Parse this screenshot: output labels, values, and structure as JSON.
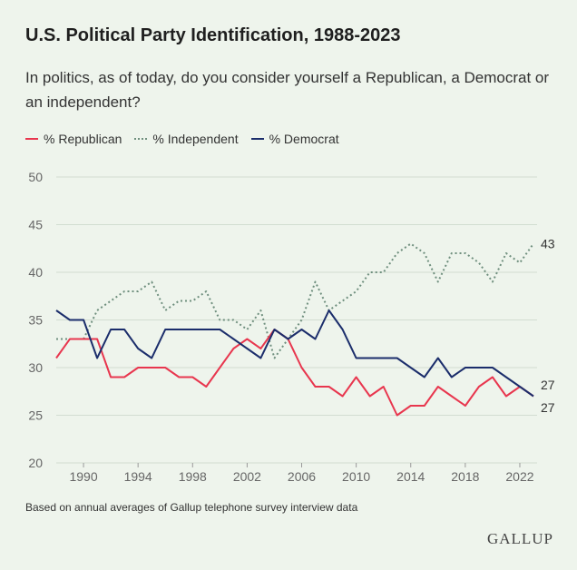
{
  "header": {
    "title": "U.S. Political Party Identification, 1988-2023",
    "subtitle": "In politics, as of today, do you consider yourself a Republican, a Democrat or an independent?"
  },
  "legend": {
    "republican": "% Republican",
    "independent": "% Independent",
    "democrat": "% Democrat"
  },
  "footer": {
    "note": "Based on annual averages of Gallup telephone survey interview data",
    "logo": "GALLUP"
  },
  "colors": {
    "background": "#eef4ec",
    "republican": "#e8364e",
    "independent": "#6f8f7e",
    "democrat": "#1b2d6b",
    "grid": "#d2ddd1"
  },
  "chart_data": {
    "type": "line",
    "title": "U.S. Political Party Identification, 1988-2023",
    "xlabel": "",
    "ylabel": "",
    "ylim": [
      20,
      50
    ],
    "yticks": [
      20,
      25,
      30,
      35,
      40,
      45,
      50
    ],
    "xlim": [
      1988,
      2023
    ],
    "xticks": [
      1990,
      1994,
      1998,
      2002,
      2006,
      2010,
      2014,
      2018,
      2022
    ],
    "x": [
      1988,
      1989,
      1990,
      1991,
      1992,
      1993,
      1994,
      1995,
      1996,
      1997,
      1998,
      1999,
      2000,
      2001,
      2002,
      2003,
      2004,
      2005,
      2006,
      2007,
      2008,
      2009,
      2010,
      2011,
      2012,
      2013,
      2014,
      2015,
      2016,
      2017,
      2018,
      2019,
      2020,
      2021,
      2022,
      2023
    ],
    "series": [
      {
        "name": "% Republican",
        "style": "solid",
        "values": [
          31,
          33,
          33,
          33,
          29,
          29,
          30,
          30,
          30,
          29,
          29,
          28,
          30,
          32,
          33,
          32,
          34,
          33,
          30,
          28,
          28,
          27,
          29,
          27,
          28,
          25,
          26,
          26,
          28,
          27,
          26,
          28,
          29,
          27,
          28,
          27
        ]
      },
      {
        "name": "% Independent",
        "style": "dotted",
        "values": [
          33,
          33,
          33,
          36,
          37,
          38,
          38,
          39,
          36,
          37,
          37,
          38,
          35,
          35,
          34,
          36,
          31,
          33,
          35,
          39,
          36,
          37,
          38,
          40,
          40,
          42,
          43,
          42,
          39,
          42,
          42,
          41,
          39,
          42,
          41,
          43
        ]
      },
      {
        "name": "% Democrat",
        "style": "solid",
        "values": [
          36,
          35,
          35,
          31,
          34,
          34,
          32,
          31,
          34,
          34,
          34,
          34,
          34,
          33,
          32,
          31,
          34,
          33,
          34,
          33,
          36,
          34,
          31,
          31,
          31,
          31,
          30,
          29,
          31,
          29,
          30,
          30,
          30,
          29,
          28,
          27
        ]
      }
    ],
    "end_labels": {
      "independent": "43",
      "democrat": "27",
      "republican": "27"
    },
    "legend_position": "top-left",
    "grid": true
  }
}
